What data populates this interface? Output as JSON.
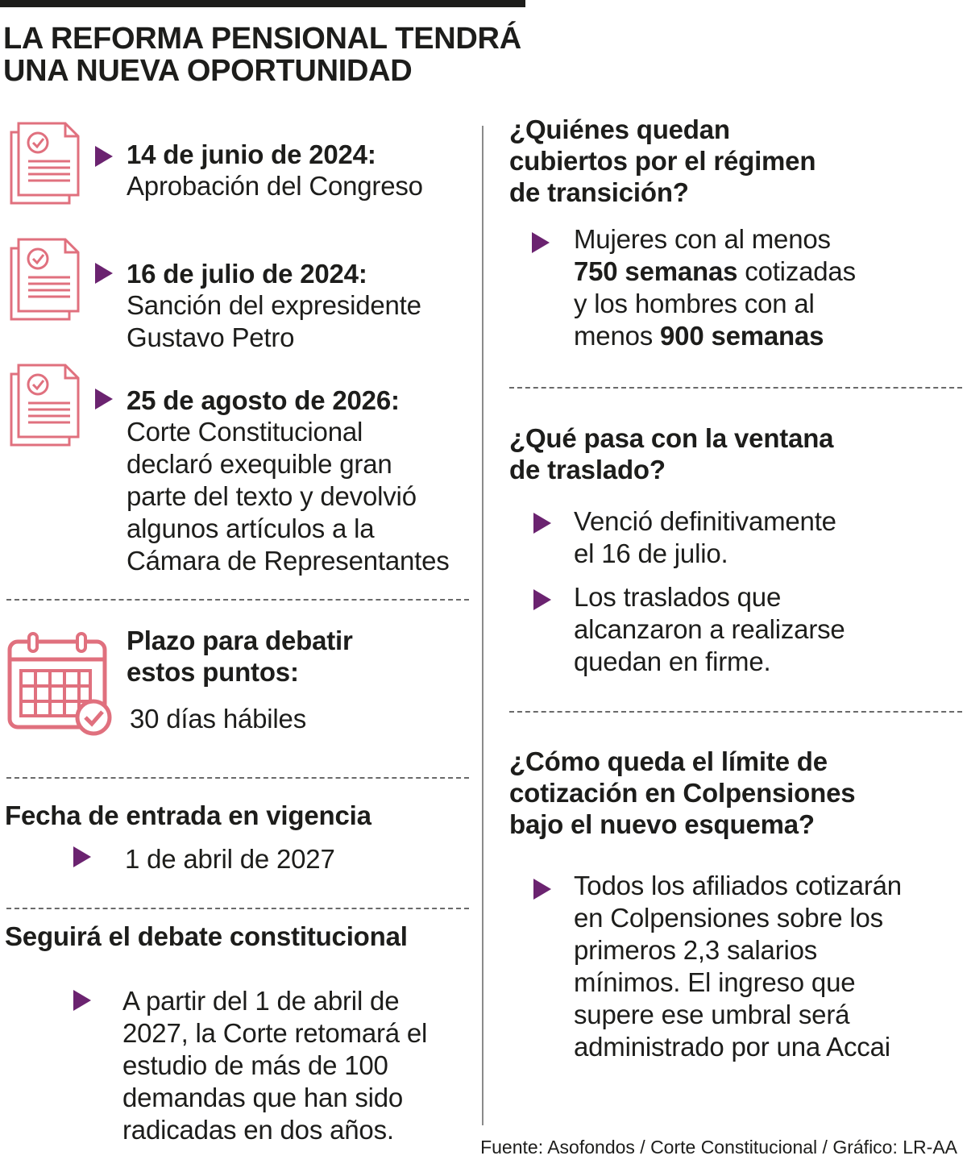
{
  "title": [
    "LA REFORMA PENSIONAL TENDRÁ",
    "UNA NUEVA OPORTUNIDAD"
  ],
  "timeline": [
    {
      "date": "14 de junio de 2024:",
      "text": [
        "Aprobación del Congreso"
      ]
    },
    {
      "date": "16 de julio de 2024:",
      "text": [
        "Sanción del expresidente",
        "Gustavo Petro"
      ]
    },
    {
      "date": "25 de agosto de 2026:",
      "text": [
        "Corte Constitucional",
        "declaró exequible gran",
        "parte del texto y devolvió",
        "algunos artículos a la",
        "Cámara de Representantes"
      ]
    }
  ],
  "plazo": {
    "heading": [
      "Plazo para debatir",
      "estos puntos:"
    ],
    "value": "30 días hábiles"
  },
  "vigencia": {
    "heading": "Fecha de entrada en vigencia",
    "value": "1 de abril de 2027"
  },
  "debate": {
    "heading": "Seguirá el debate constitucional",
    "text": [
      "A partir del 1 de abril de",
      "2027, la Corte retomará el",
      "estudio de más de 100",
      "demandas que han sido",
      "radicadas en dos años."
    ]
  },
  "transicion": {
    "heading": [
      "¿Quiénes quedan",
      "cubiertos por el régimen",
      "de transición?"
    ],
    "line1": "Mujeres con al menos",
    "bold1": "750 semanas",
    "rest1": " cotizadas",
    "line3": "y los hombres con al",
    "pre4": "menos ",
    "bold2": "900 semanas"
  },
  "ventana": {
    "heading": [
      "¿Qué pasa con la ventana",
      "de traslado?"
    ],
    "items": [
      [
        "Venció definitivamente",
        "el 16 de julio."
      ],
      [
        "Los traslados que",
        "alcanzaron a realizarse",
        "quedan en firme."
      ]
    ]
  },
  "limite": {
    "heading": [
      "¿Cómo queda el límite de",
      "cotización en Colpensiones",
      "bajo el nuevo esquema?"
    ],
    "text": [
      "Todos los afiliados cotizarán",
      "en Colpensiones sobre los",
      "primeros 2,3 salarios",
      "mínimos. El ingreso que",
      "supere ese umbral será",
      "administrado por una Accai"
    ]
  },
  "source": "Fuente: Asofondos / Corte Constitucional / Gráfico: LR-AA",
  "colors": {
    "accent": "#6b2370",
    "icon": "#e0707e",
    "text": "#1d1d1b"
  },
  "icons": [
    "document-check-icon",
    "calendar-check-icon",
    "triangle-bullet-icon"
  ]
}
